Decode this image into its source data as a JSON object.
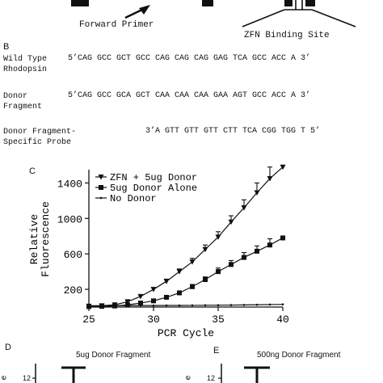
{
  "panel_a": {
    "forward_primer_label": "Forward Primer",
    "zfn_site_label": "ZFN Binding Site"
  },
  "panel_b": {
    "letter": "B",
    "rows": [
      {
        "label": "Wild Type\nRhodopsin",
        "sequence": "5’CAG GCC GCT GCC CAG CAG CAG GAG TCA GCC ACC A 3’"
      },
      {
        "label": "Donor\nFragment",
        "sequence": "5’CAG GCC GCA GCT CAA CAA CAA GAA AGT GCC ACC A 3’"
      },
      {
        "label": "Donor Fragment-\nSpecific Probe",
        "sequence": "3’A GTT GTT GTT CTT TCA CGG TGG T 5’"
      }
    ]
  },
  "panel_c": {
    "letter": "C",
    "xlabel": "PCR Cycle",
    "ylabel": "Relative\nFluorescence"
  },
  "panel_d": {
    "letter": "D",
    "title": "5ug Donor Fragment",
    "tick": "12",
    "ylabel_fragment": "e"
  },
  "panel_e": {
    "letter": "E",
    "title": "500ng Donor Fragment",
    "tick": "12",
    "ylabel_fragment": "e"
  },
  "chart_data": {
    "type": "line",
    "xlabel": "PCR Cycle",
    "ylabel": "Relative Fluorescence",
    "xlim": [
      25,
      40
    ],
    "ylim": [
      0,
      1550
    ],
    "xticks": [
      25,
      30,
      35,
      40
    ],
    "yticks": [
      200,
      600,
      1000,
      1400
    ],
    "legend_position": "top-left",
    "series": [
      {
        "name": "ZFN + 5ug Donor",
        "marker": "triangle-down",
        "x": [
          25,
          26,
          27,
          28,
          29,
          30,
          31,
          32,
          33,
          34,
          35,
          36,
          37,
          38,
          39,
          40
        ],
        "y": [
          10,
          15,
          25,
          60,
          120,
          200,
          290,
          400,
          510,
          650,
          790,
          960,
          1120,
          1290,
          1450,
          1580
        ],
        "err": [
          0,
          0,
          5,
          10,
          15,
          20,
          25,
          30,
          40,
          50,
          60,
          70,
          90,
          110,
          130,
          0
        ]
      },
      {
        "name": "5ug Donor Alone",
        "marker": "square",
        "x": [
          25,
          26,
          27,
          28,
          29,
          30,
          31,
          32,
          33,
          34,
          35,
          36,
          37,
          38,
          39,
          40
        ],
        "y": [
          5,
          8,
          12,
          25,
          45,
          70,
          110,
          160,
          230,
          310,
          400,
          480,
          560,
          630,
          700,
          780
        ],
        "err": [
          0,
          0,
          3,
          5,
          8,
          12,
          15,
          20,
          25,
          30,
          40,
          45,
          55,
          60,
          70,
          0
        ]
      },
      {
        "name": "No Donor",
        "marker": "dot",
        "x": [
          25,
          26,
          27,
          28,
          29,
          30,
          31,
          32,
          33,
          34,
          35,
          36,
          37,
          38,
          39,
          40
        ],
        "y": [
          15,
          15,
          16,
          16,
          17,
          17,
          18,
          18,
          19,
          20,
          21,
          22,
          24,
          26,
          28,
          30
        ],
        "err": [
          0,
          0,
          0,
          0,
          0,
          0,
          0,
          0,
          0,
          0,
          0,
          0,
          0,
          0,
          0,
          0
        ]
      }
    ]
  }
}
